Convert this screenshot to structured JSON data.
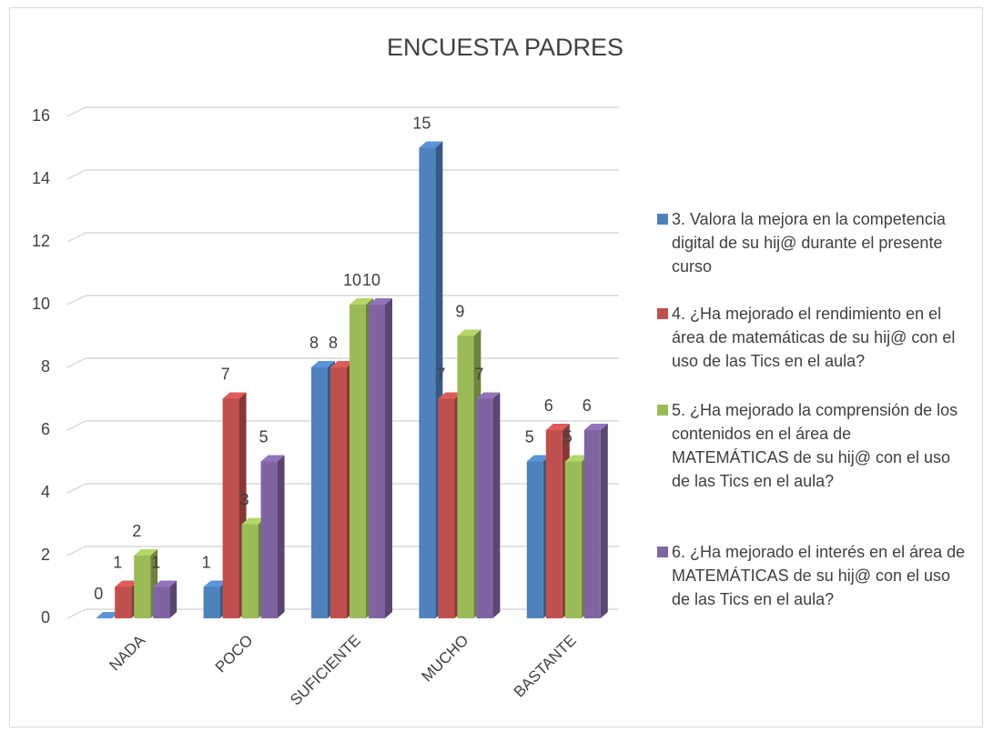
{
  "chart_data": {
    "type": "bar3d",
    "title": "ENCUESTA PADRES",
    "categories": [
      "NADA",
      "POCO",
      "SUFICIENTE",
      "MUCHO",
      "BASTANTE"
    ],
    "series": [
      {
        "name": "3.  Valora la mejora en la competencia digital de su hij@ durante el presente curso",
        "color": "#4f81bd",
        "values": [
          0,
          1,
          8,
          15,
          5
        ]
      },
      {
        "name": "4.  ¿Ha mejorado el rendimiento en el área de matemáticas de su hij@ con el uso de las Tics en el aula?",
        "color": "#c0504d",
        "values": [
          1,
          7,
          8,
          7,
          6
        ]
      },
      {
        "name": "5.  ¿Ha  mejorado la comprensión de los contenidos en el área de MATEMÁTICAS de su hij@ con el uso de las Tics en el aula?",
        "color": "#9bbb59",
        "values": [
          2,
          3,
          10,
          9,
          5
        ]
      },
      {
        "name": "6.  ¿Ha  mejorado el interés en el área de MATEMÁTICAS de su hij@ con el uso de las Tics en el aula?",
        "color": "#8064a2",
        "values": [
          1,
          5,
          10,
          7,
          6
        ]
      }
    ],
    "ylim": [
      0,
      16
    ],
    "yticks": [
      0,
      2,
      4,
      6,
      8,
      10,
      12,
      14,
      16
    ],
    "grid": true,
    "legend": "right"
  }
}
